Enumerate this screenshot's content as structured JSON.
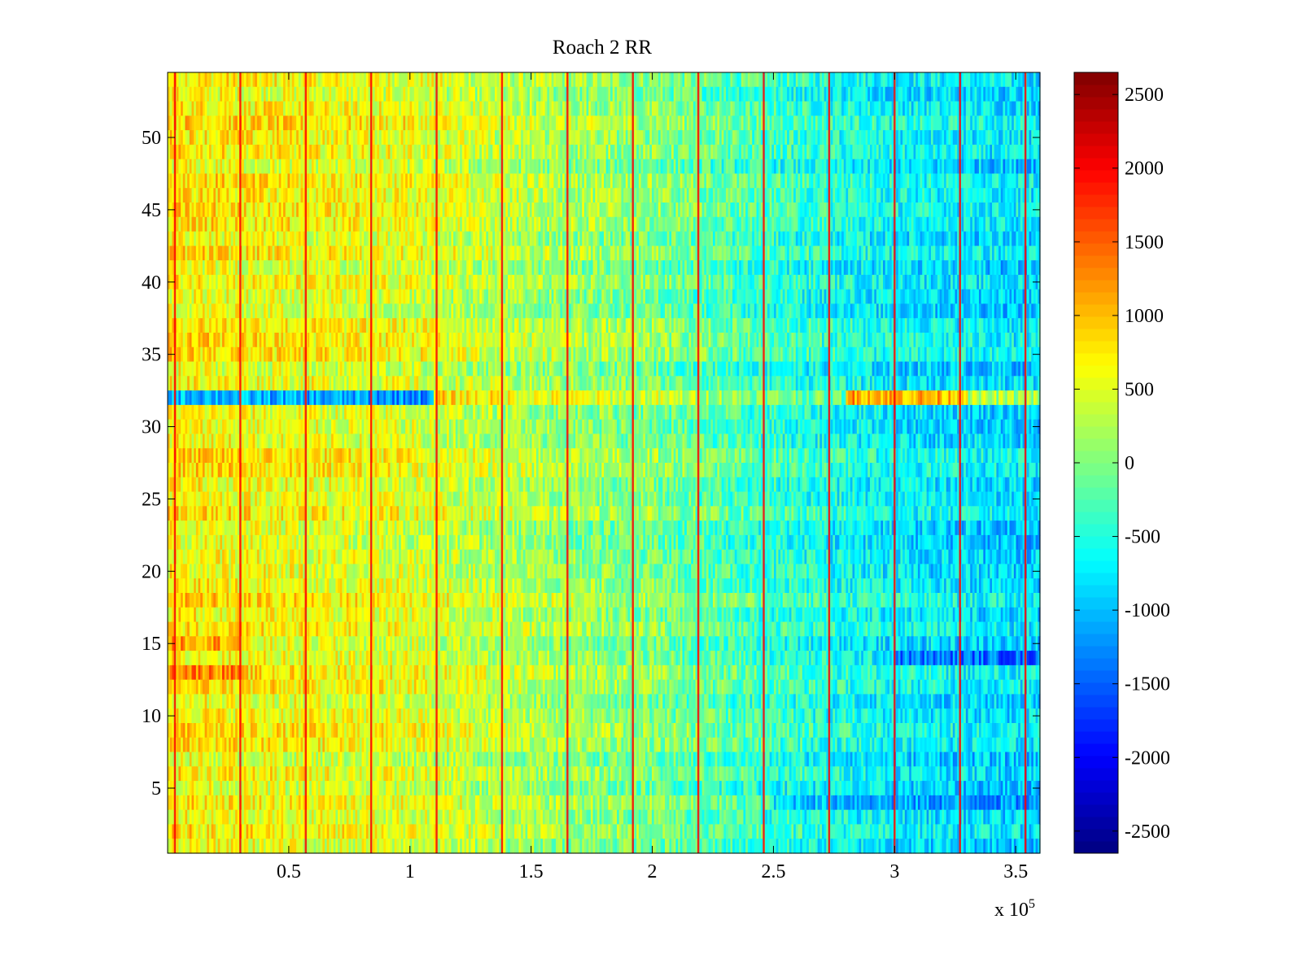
{
  "chart_data": {
    "type": "heatmap",
    "title": "Roach 2 RR",
    "xlabel": "",
    "ylabel": "",
    "x_multiplier_label": "x 10",
    "x_multiplier_exponent": "5",
    "xlim": [
      0,
      3.6
    ],
    "ylim": [
      0.5,
      54.5
    ],
    "x_ticks": [
      0.5,
      1,
      1.5,
      2,
      2.5,
      3,
      3.5
    ],
    "x_tick_labels": [
      "0.5",
      "1",
      "1.5",
      "2",
      "2.5",
      "3",
      "3.5"
    ],
    "y_ticks": [
      5,
      10,
      15,
      20,
      25,
      30,
      35,
      40,
      45,
      50
    ],
    "y_tick_labels": [
      "5",
      "10",
      "15",
      "20",
      "25",
      "30",
      "35",
      "40",
      "45",
      "50"
    ],
    "rows": 54,
    "colorbar": {
      "colormap": "jet",
      "clim": [
        -2650,
        2650
      ],
      "ticks": [
        2500,
        2000,
        1500,
        1000,
        500,
        0,
        -500,
        -1000,
        -1500,
        -2000,
        -2500
      ],
      "tick_labels": [
        "2500",
        "2000",
        "1500",
        "1000",
        "500",
        "0",
        "-500",
        "-1000",
        "-1500",
        "-2000",
        "-2500"
      ]
    },
    "trend": {
      "description": "Values decrease left to right along x",
      "x_points": [
        0,
        0.5,
        1.0,
        1.5,
        2.0,
        2.5,
        3.0,
        3.6
      ],
      "values": [
        750,
        600,
        500,
        200,
        0,
        -400,
        -700,
        -850
      ]
    },
    "row_offsets": [
      {
        "row": 32,
        "offset": -1800,
        "x_range": [
          0,
          1.1
        ]
      },
      {
        "row": 32,
        "offset": 300,
        "x_range": [
          1.1,
          2.8
        ]
      },
      {
        "row": 32,
        "offset": 1700,
        "x_range": [
          2.8,
          3.3
        ]
      },
      {
        "row": 32,
        "offset": 900,
        "x_range": [
          3.3,
          3.6
        ]
      },
      {
        "row": 15,
        "offset": 600,
        "x_range": [
          0,
          0.3
        ]
      },
      {
        "row": 13,
        "offset": 500,
        "x_range": [
          0,
          0.3
        ]
      },
      {
        "row": 4,
        "offset": -500,
        "x_range": [
          2.5,
          3.6
        ]
      },
      {
        "row": 14,
        "offset": -600,
        "x_range": [
          3.0,
          3.6
        ]
      }
    ],
    "vertical_lines_x": [
      0.03,
      0.3,
      0.57,
      0.84,
      1.11,
      1.38,
      1.65,
      1.92,
      2.19,
      2.46,
      2.73,
      3.0,
      3.27,
      3.54
    ],
    "vertical_line_value": 2000
  }
}
